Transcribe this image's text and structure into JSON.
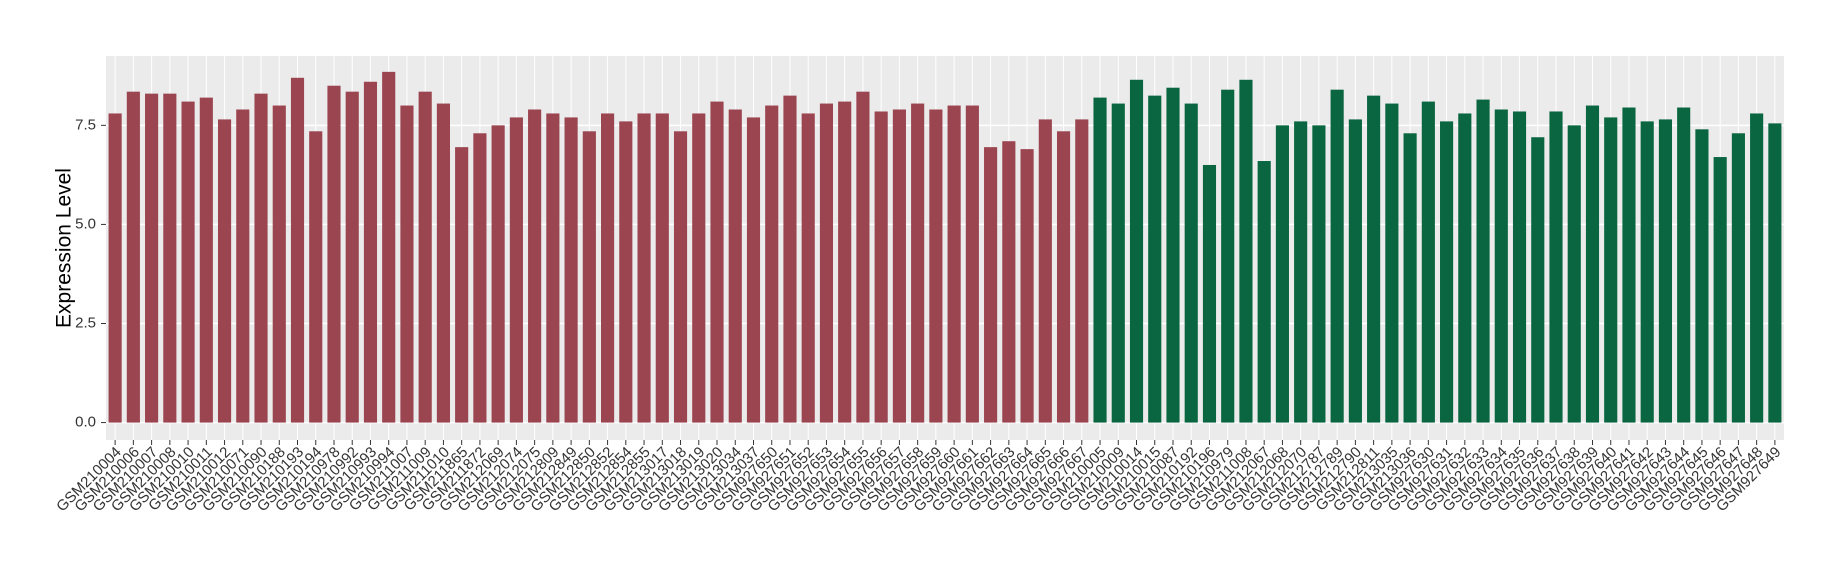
{
  "chart_data": {
    "type": "bar",
    "y_label": "Expression Level",
    "categories": [
      "GSM210004",
      "GSM210006",
      "GSM210007",
      "GSM210008",
      "GSM210010",
      "GSM210011",
      "GSM210012",
      "GSM210071",
      "GSM210090",
      "GSM210188",
      "GSM210193",
      "GSM210194",
      "GSM210978",
      "GSM210992",
      "GSM210993",
      "GSM210994",
      "GSM211007",
      "GSM211009",
      "GSM211010",
      "GSM211865",
      "GSM211872",
      "GSM212069",
      "GSM212074",
      "GSM212075",
      "GSM212809",
      "GSM212849",
      "GSM212850",
      "GSM212852",
      "GSM212854",
      "GSM212855",
      "GSM213017",
      "GSM213018",
      "GSM213019",
      "GSM213020",
      "GSM213034",
      "GSM213037",
      "GSM927650",
      "GSM927651",
      "GSM927652",
      "GSM927653",
      "GSM927654",
      "GSM927655",
      "GSM927656",
      "GSM927657",
      "GSM927658",
      "GSM927659",
      "GSM927660",
      "GSM927661",
      "GSM927662",
      "GSM927663",
      "GSM927664",
      "GSM927665",
      "GSM927666",
      "GSM927667",
      "GSM210005",
      "GSM210009",
      "GSM210014",
      "GSM210015",
      "GSM210087",
      "GSM210192",
      "GSM210196",
      "GSM210979",
      "GSM211008",
      "GSM212067",
      "GSM212068",
      "GSM212070",
      "GSM212787",
      "GSM212789",
      "GSM212790",
      "GSM212811",
      "GSM213035",
      "GSM213036",
      "GSM927630",
      "GSM927631",
      "GSM927632",
      "GSM927633",
      "GSM927634",
      "GSM927635",
      "GSM927636",
      "GSM927637",
      "GSM927638",
      "GSM927639",
      "GSM927640",
      "GSM927641",
      "GSM927642",
      "GSM927643",
      "GSM927644",
      "GSM927645",
      "GSM927646",
      "GSM927647",
      "GSM927648",
      "GSM927649"
    ],
    "values": [
      7.8,
      8.35,
      8.3,
      8.3,
      8.1,
      8.2,
      7.65,
      7.9,
      8.3,
      8.0,
      8.7,
      7.35,
      8.5,
      8.35,
      8.6,
      8.85,
      8.0,
      8.35,
      8.05,
      6.95,
      7.3,
      7.5,
      7.7,
      7.9,
      7.8,
      7.7,
      7.35,
      7.8,
      7.6,
      7.8,
      7.8,
      7.35,
      7.8,
      8.1,
      7.9,
      7.7,
      8.0,
      8.25,
      7.8,
      8.05,
      8.1,
      8.35,
      7.85,
      7.9,
      8.05,
      7.9,
      8.0,
      8.0,
      6.95,
      7.1,
      6.9,
      7.65,
      7.35,
      7.65,
      8.2,
      8.05,
      8.65,
      8.25,
      8.45,
      8.05,
      6.5,
      8.4,
      8.65,
      6.6,
      7.5,
      7.6,
      7.5,
      8.4,
      7.65,
      8.25,
      8.05,
      7.3,
      8.1,
      7.6,
      7.8,
      8.15,
      7.9,
      7.85,
      7.2,
      7.85,
      7.5,
      8.0,
      7.7,
      7.95,
      7.6,
      7.65,
      7.95,
      7.4,
      6.7,
      7.3,
      7.8,
      7.55
    ],
    "colors": [
      "#9b4550",
      "#9b4550",
      "#9b4550",
      "#9b4550",
      "#9b4550",
      "#9b4550",
      "#9b4550",
      "#9b4550",
      "#9b4550",
      "#9b4550",
      "#9b4550",
      "#9b4550",
      "#9b4550",
      "#9b4550",
      "#9b4550",
      "#9b4550",
      "#9b4550",
      "#9b4550",
      "#9b4550",
      "#9b4550",
      "#9b4550",
      "#9b4550",
      "#9b4550",
      "#9b4550",
      "#9b4550",
      "#9b4550",
      "#9b4550",
      "#9b4550",
      "#9b4550",
      "#9b4550",
      "#9b4550",
      "#9b4550",
      "#9b4550",
      "#9b4550",
      "#9b4550",
      "#9b4550",
      "#9b4550",
      "#9b4550",
      "#9b4550",
      "#9b4550",
      "#9b4550",
      "#9b4550",
      "#9b4550",
      "#9b4550",
      "#9b4550",
      "#9b4550",
      "#9b4550",
      "#9b4550",
      "#9b4550",
      "#9b4550",
      "#9b4550",
      "#9b4550",
      "#9b4550",
      "#9b4550",
      "#0a6641",
      "#0a6641",
      "#0a6641",
      "#0a6641",
      "#0a6641",
      "#0a6641",
      "#0a6641",
      "#0a6641",
      "#0a6641",
      "#0a6641",
      "#0a6641",
      "#0a6641",
      "#0a6641",
      "#0a6641",
      "#0a6641",
      "#0a6641",
      "#0a6641",
      "#0a6641",
      "#0a6641",
      "#0a6641",
      "#0a6641",
      "#0a6641",
      "#0a6641",
      "#0a6641",
      "#0a6641",
      "#0a6641",
      "#0a6641",
      "#0a6641",
      "#0a6641",
      "#0a6641",
      "#0a6641",
      "#0a6641",
      "#0a6641",
      "#0a6641",
      "#0a6641",
      "#0a6641",
      "#0a6641",
      "#0a6641"
    ],
    "ylim": [
      -0.44,
      9.25
    ],
    "yticks": [
      {
        "value": 0,
        "label": "0.0"
      },
      {
        "value": 2.5,
        "label": "2.5"
      },
      {
        "value": 5,
        "label": "5.0"
      },
      {
        "value": 7.5,
        "label": "7.5"
      }
    ],
    "grid": true
  }
}
